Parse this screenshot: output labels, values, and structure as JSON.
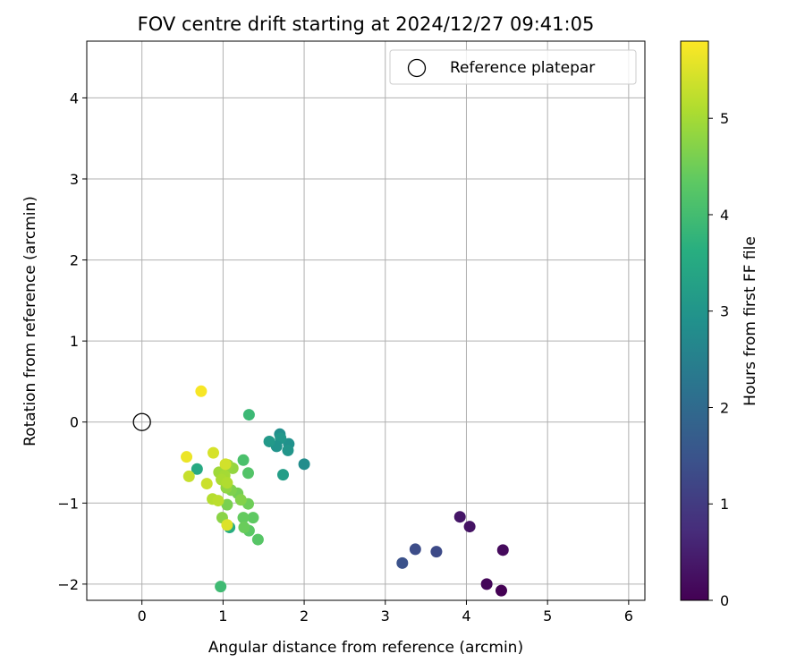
{
  "chart_data": {
    "type": "scatter",
    "title": "FOV centre drift starting at 2024/12/27 09:41:05",
    "xlabel": "Angular distance from reference (arcmin)",
    "ylabel": "Rotation from reference (arcmin)",
    "xlim": [
      -0.68,
      6.2
    ],
    "ylim": [
      -2.2,
      4.7
    ],
    "xticks": [
      0,
      1,
      2,
      3,
      4,
      5,
      6
    ],
    "yticks": [
      -2,
      -1,
      0,
      1,
      2,
      3,
      4
    ],
    "grid": true,
    "legend": {
      "placement": "top-right",
      "entries": [
        {
          "label": "Reference platepar",
          "marker": "open-circle"
        }
      ]
    },
    "reference_point": {
      "x": 0.0,
      "y": 0.0
    },
    "colorbar": {
      "label": "Hours from first FF file",
      "colormap": "viridis",
      "range": [
        0,
        5.8
      ],
      "ticks": [
        0,
        1,
        2,
        3,
        4,
        5
      ]
    },
    "points": [
      {
        "x": 4.43,
        "y": -2.08,
        "hours": 0.0
      },
      {
        "x": 4.25,
        "y": -2.0,
        "hours": 0.1
      },
      {
        "x": 4.45,
        "y": -1.58,
        "hours": 0.15
      },
      {
        "x": 4.04,
        "y": -1.29,
        "hours": 0.3
      },
      {
        "x": 3.92,
        "y": -1.17,
        "hours": 0.35
      },
      {
        "x": 3.63,
        "y": -1.6,
        "hours": 1.3
      },
      {
        "x": 3.37,
        "y": -1.57,
        "hours": 1.35
      },
      {
        "x": 3.21,
        "y": -1.74,
        "hours": 1.45
      },
      {
        "x": 2.0,
        "y": -0.52,
        "hours": 2.8
      },
      {
        "x": 1.81,
        "y": -0.27,
        "hours": 2.9
      },
      {
        "x": 1.8,
        "y": -0.35,
        "hours": 3.0
      },
      {
        "x": 1.7,
        "y": -0.15,
        "hours": 2.85
      },
      {
        "x": 1.71,
        "y": -0.2,
        "hours": 3.05
      },
      {
        "x": 1.66,
        "y": -0.3,
        "hours": 2.95
      },
      {
        "x": 1.57,
        "y": -0.24,
        "hours": 3.1
      },
      {
        "x": 1.74,
        "y": -0.65,
        "hours": 3.2
      },
      {
        "x": 1.32,
        "y": 0.09,
        "hours": 3.9
      },
      {
        "x": 0.68,
        "y": -0.58,
        "hours": 3.5
      },
      {
        "x": 1.08,
        "y": -1.3,
        "hours": 3.6
      },
      {
        "x": 0.97,
        "y": -2.03,
        "hours": 3.95
      },
      {
        "x": 1.25,
        "y": -0.47,
        "hours": 4.1
      },
      {
        "x": 1.31,
        "y": -0.63,
        "hours": 4.2
      },
      {
        "x": 1.43,
        "y": -1.45,
        "hours": 4.25
      },
      {
        "x": 1.32,
        "y": -1.34,
        "hours": 4.3
      },
      {
        "x": 1.37,
        "y": -1.18,
        "hours": 4.35
      },
      {
        "x": 1.25,
        "y": -1.18,
        "hours": 4.4
      },
      {
        "x": 1.26,
        "y": -1.3,
        "hours": 4.45
      },
      {
        "x": 1.31,
        "y": -1.01,
        "hours": 4.5
      },
      {
        "x": 1.18,
        "y": -0.88,
        "hours": 4.55
      },
      {
        "x": 1.05,
        "y": -1.02,
        "hours": 4.6
      },
      {
        "x": 1.1,
        "y": -0.84,
        "hours": 4.65
      },
      {
        "x": 1.22,
        "y": -0.96,
        "hours": 4.7
      },
      {
        "x": 0.99,
        "y": -1.18,
        "hours": 4.75
      },
      {
        "x": 1.04,
        "y": -0.81,
        "hours": 4.8
      },
      {
        "x": 1.12,
        "y": -0.57,
        "hours": 4.85
      },
      {
        "x": 1.06,
        "y": -0.53,
        "hours": 4.9
      },
      {
        "x": 0.95,
        "y": -0.62,
        "hours": 4.95
      },
      {
        "x": 1.02,
        "y": -0.66,
        "hours": 5.0
      },
      {
        "x": 0.98,
        "y": -0.71,
        "hours": 5.05
      },
      {
        "x": 1.05,
        "y": -0.75,
        "hours": 5.1
      },
      {
        "x": 0.87,
        "y": -0.95,
        "hours": 5.15
      },
      {
        "x": 0.94,
        "y": -0.97,
        "hours": 5.2
      },
      {
        "x": 0.58,
        "y": -0.67,
        "hours": 5.3
      },
      {
        "x": 0.8,
        "y": -0.76,
        "hours": 5.35
      },
      {
        "x": 1.03,
        "y": -0.52,
        "hours": 5.4
      },
      {
        "x": 0.88,
        "y": -0.38,
        "hours": 5.45
      },
      {
        "x": 1.05,
        "y": -1.27,
        "hours": 5.5
      },
      {
        "x": 0.55,
        "y": -0.43,
        "hours": 5.65
      },
      {
        "x": 0.73,
        "y": 0.38,
        "hours": 5.75
      }
    ]
  }
}
